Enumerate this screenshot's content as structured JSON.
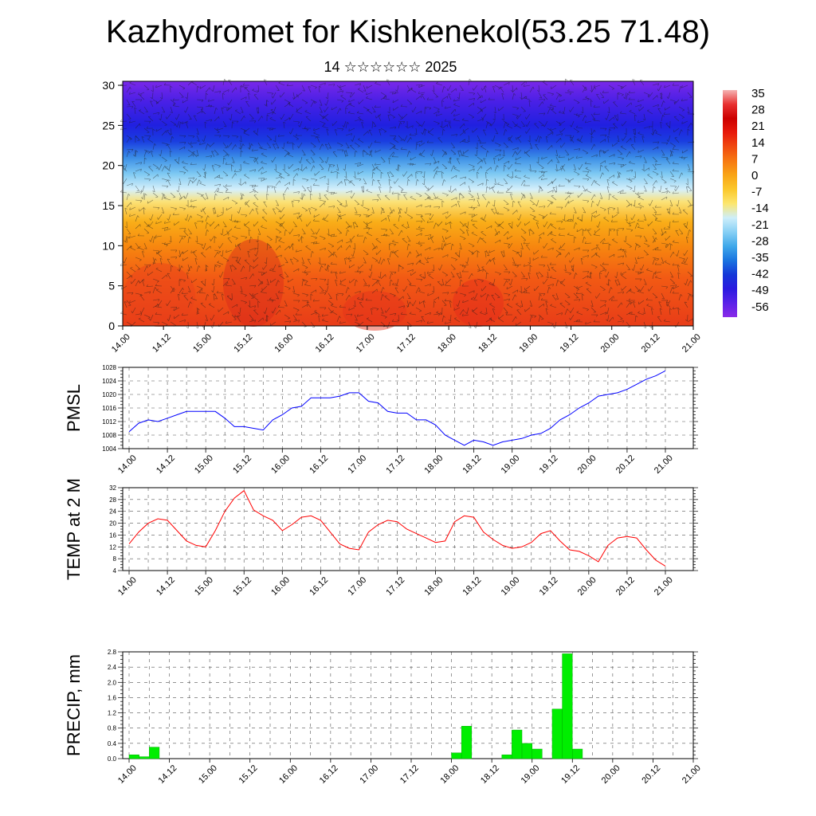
{
  "header": {
    "title": "Kazhydromet for Kishkenekol(53.25 71.48)",
    "subtitle": "14 ☆☆☆☆☆☆ 2025"
  },
  "x_tick_labels": [
    "14.00",
    "14.12",
    "15.00",
    "15.12",
    "16.00",
    "16.12",
    "17.00",
    "17.12",
    "18.00",
    "18.12",
    "19.00",
    "19.12",
    "20.00",
    "20.12",
    "21.00"
  ],
  "colors": {
    "pmsl_line": "#0000ff",
    "temp_line": "#ff0000",
    "precip_bar": "#00ee00",
    "panel_border": "#000000"
  },
  "chart_data": [
    {
      "type": "heatmap",
      "name": "cross-section",
      "y_ticks": [
        0,
        5,
        10,
        15,
        20,
        25,
        30
      ],
      "ylim": [
        0,
        30.5
      ],
      "colorbar": {
        "labels": [
          "35",
          "28",
          "21",
          "14",
          "7",
          "0",
          "-7",
          "-14",
          "-21",
          "-28",
          "-35",
          "-42",
          "-49",
          "-56"
        ],
        "colors": [
          "#f5b3b3",
          "#e83030",
          "#cc0000",
          "#e81a0a",
          "#f04a10",
          "#f77a12",
          "#f9a516",
          "#fbc82c",
          "#fce66e",
          "#cdeefa",
          "#88d0f5",
          "#3fa8ea",
          "#1a74e0",
          "#1537d8",
          "#2a1ae0",
          "#5a22e8",
          "#8a2ae8"
        ]
      },
      "gradient_by_height": [
        {
          "y": 0,
          "color": "#e83c18"
        },
        {
          "y": 6,
          "color": "#f25a14"
        },
        {
          "y": 10,
          "color": "#f7880f"
        },
        {
          "y": 13,
          "color": "#f9ae18"
        },
        {
          "y": 15.5,
          "color": "#fbe278"
        },
        {
          "y": 17,
          "color": "#d6f0fa"
        },
        {
          "y": 19,
          "color": "#7cc8f2"
        },
        {
          "y": 21,
          "color": "#3a8ce6"
        },
        {
          "y": 23,
          "color": "#1a3ee0"
        },
        {
          "y": 25,
          "color": "#2020e0"
        },
        {
          "y": 28,
          "color": "#4a20e6"
        },
        {
          "y": 30.5,
          "color": "#7a28e8"
        }
      ]
    },
    {
      "type": "line",
      "ylabel": "PMSL",
      "ylim": [
        1004,
        1028
      ],
      "y_ticks": [
        1004,
        1008,
        1012,
        1016,
        1020,
        1024,
        1028
      ],
      "x": [
        0,
        3,
        6,
        9,
        12,
        15,
        18,
        21,
        24,
        27,
        30,
        33,
        36,
        39,
        42,
        45,
        48,
        51,
        54,
        57,
        60,
        63,
        66,
        69,
        72,
        75,
        78,
        81,
        84,
        87,
        90,
        93,
        96,
        99,
        102,
        105,
        108,
        111,
        114,
        117,
        120,
        123,
        126,
        129,
        132,
        135,
        138,
        141,
        144,
        147,
        150,
        153,
        156,
        159,
        162,
        165,
        168
      ],
      "values": [
        1009,
        1011.5,
        1012.5,
        1012,
        1013,
        1014,
        1015,
        1015,
        1015,
        1015,
        1013,
        1010.5,
        1010.5,
        1010,
        1009.5,
        1012.5,
        1014,
        1016,
        1016.5,
        1019,
        1019,
        1019,
        1019.5,
        1020.5,
        1020.5,
        1018,
        1017.5,
        1015,
        1014.5,
        1014.5,
        1012.5,
        1012.5,
        1011,
        1008,
        1006.5,
        1005,
        1006.5,
        1006,
        1005,
        1006,
        1006.5,
        1007,
        1008,
        1008.5,
        1010,
        1012.5,
        1014,
        1016,
        1017.5,
        1019.5,
        1020,
        1020.5,
        1021.5,
        1023,
        1024.5,
        1025.5,
        1027
      ]
    },
    {
      "type": "line",
      "ylabel": "TEMP at 2 M",
      "ylim": [
        4,
        32
      ],
      "y_ticks": [
        4,
        8,
        12,
        16,
        20,
        24,
        28,
        32
      ],
      "x": [
        0,
        3,
        6,
        9,
        12,
        15,
        18,
        21,
        24,
        27,
        30,
        33,
        36,
        39,
        42,
        45,
        48,
        51,
        54,
        57,
        60,
        63,
        66,
        69,
        72,
        75,
        78,
        81,
        84,
        87,
        90,
        93,
        96,
        99,
        102,
        105,
        108,
        111,
        114,
        117,
        120,
        123,
        126,
        129,
        132,
        135,
        138,
        141,
        144,
        147,
        150,
        153,
        156,
        159,
        162,
        165,
        168
      ],
      "values": [
        13,
        17,
        20,
        21.5,
        21,
        17.5,
        14,
        12.5,
        12,
        17.5,
        24,
        28.5,
        31,
        24.5,
        22.5,
        21,
        17.5,
        19.5,
        22,
        22.5,
        21,
        17,
        13,
        11.5,
        11,
        17,
        19.5,
        21,
        20.5,
        18,
        16.5,
        15,
        13.5,
        14,
        20.5,
        22.5,
        22,
        17,
        14.5,
        12.5,
        11.5,
        12,
        13.5,
        16.5,
        17.5,
        14,
        11,
        10.5,
        9,
        7,
        12.5,
        15,
        15.5,
        15,
        11,
        7.5,
        5.5
      ]
    },
    {
      "type": "bar",
      "ylabel": "PRECIP, mm",
      "ylim": [
        0,
        2.8
      ],
      "y_ticks": [
        "0.0",
        "0.4",
        "0.8",
        "1.2",
        "1.6",
        "2.0",
        "2.4",
        "2.8"
      ],
      "bar_width_hours": 3,
      "x": [
        0,
        3,
        6,
        9,
        96,
        99,
        102,
        105,
        108,
        111,
        114,
        117,
        120,
        123,
        126,
        129,
        132,
        135,
        138,
        141
      ],
      "values": [
        0.1,
        0.05,
        0.3,
        0.0,
        0.15,
        0.85,
        0.0,
        0.0,
        0.0,
        0.1,
        0.75,
        0.4,
        0.25,
        0.0,
        1.3,
        2.75,
        0.25,
        0.0,
        0.0,
        0.0
      ]
    }
  ]
}
